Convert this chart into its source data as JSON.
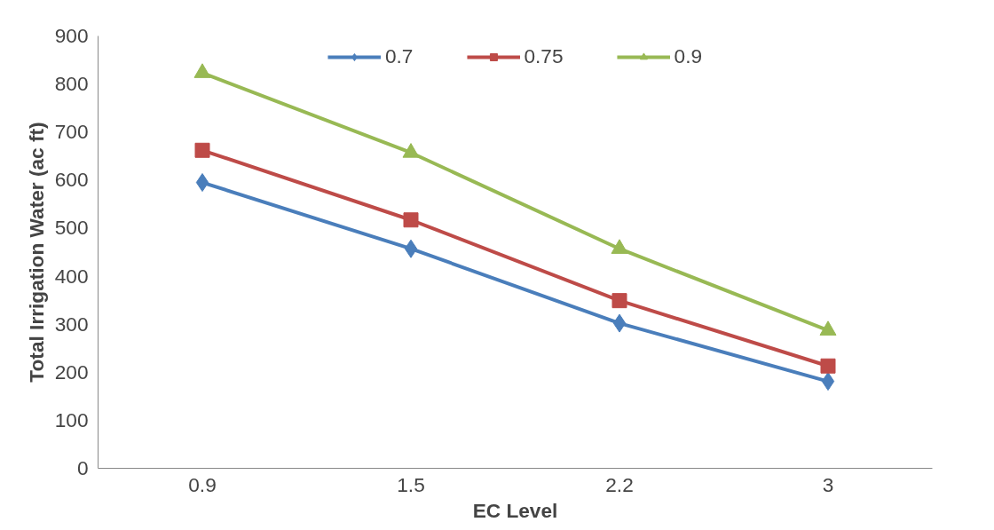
{
  "chart_data": {
    "type": "line",
    "xlabel": "EC Level",
    "ylabel": "Total Irrigation Water (ac ft)",
    "categories": [
      "0.9",
      "1.5",
      "2.2",
      "3"
    ],
    "series": [
      {
        "name": "0.7",
        "color": "#4a7ebb",
        "marker": "diamond",
        "values": [
          595,
          457,
          302,
          181
        ]
      },
      {
        "name": "0.75",
        "color": "#be4b48",
        "marker": "square",
        "values": [
          662,
          517,
          349,
          213
        ]
      },
      {
        "name": "0.9",
        "color": "#98b954",
        "marker": "triangle",
        "values": [
          823,
          657,
          457,
          287
        ]
      }
    ],
    "ylim": [
      0,
      900
    ],
    "yticks": [
      0,
      100,
      200,
      300,
      400,
      500,
      600,
      700,
      800,
      900
    ],
    "grid": false,
    "legend": "top",
    "line_style": "solid"
  }
}
